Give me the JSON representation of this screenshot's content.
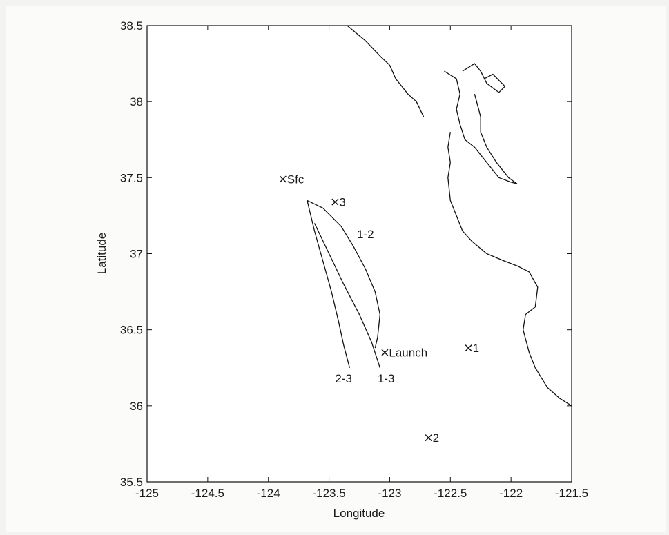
{
  "chart_data": {
    "type": "line",
    "title": "",
    "xlabel": "Longitude",
    "ylabel": "Latitude",
    "xlim": [
      -125,
      -121.5
    ],
    "ylim": [
      35.5,
      38.5
    ],
    "x_ticks": [
      -125,
      -124.5,
      -124,
      -123.5,
      -123,
      -122.5,
      -122,
      -121.5
    ],
    "y_ticks": [
      35.5,
      36,
      36.5,
      37,
      37.5,
      38,
      38.5
    ],
    "grid": false,
    "legend": "none",
    "colors": {
      "line": "#111111",
      "text": "#1a1a1a",
      "background": "#fbfbf9"
    },
    "markers": [
      {
        "label": "Sfc",
        "lon": -123.88,
        "lat": 37.49
      },
      {
        "label": "3",
        "lon": -123.45,
        "lat": 37.34
      },
      {
        "label": "Launch",
        "lon": -123.04,
        "lat": 36.35
      },
      {
        "label": "1",
        "lon": -122.35,
        "lat": 36.38
      },
      {
        "label": "2",
        "lon": -122.68,
        "lat": 35.79
      }
    ],
    "track_labels": [
      {
        "label": "1-2",
        "lon": -123.27,
        "lat": 37.13
      },
      {
        "label": "2-3",
        "lon": -123.45,
        "lat": 36.18
      },
      {
        "label": "1-3",
        "lon": -123.1,
        "lat": 36.18
      }
    ],
    "series": [
      {
        "values": [
          [
            -123.68,
            37.35
          ],
          [
            -123.55,
            37.3
          ],
          [
            -123.4,
            37.18
          ],
          [
            -123.3,
            37.05
          ],
          [
            -123.2,
            36.9
          ],
          [
            -123.12,
            36.75
          ],
          [
            -123.08,
            36.6
          ],
          [
            -123.1,
            36.45
          ],
          [
            -123.12,
            36.38
          ]
        ]
      },
      {
        "values": [
          [
            -123.68,
            37.35
          ],
          [
            -123.62,
            37.15
          ],
          [
            -123.55,
            36.95
          ],
          [
            -123.48,
            36.75
          ],
          [
            -123.42,
            36.55
          ],
          [
            -123.38,
            36.4
          ],
          [
            -123.33,
            36.25
          ]
        ]
      },
      {
        "values": [
          [
            -123.62,
            37.2
          ],
          [
            -123.5,
            37.0
          ],
          [
            -123.38,
            36.8
          ],
          [
            -123.25,
            36.6
          ],
          [
            -123.15,
            36.42
          ],
          [
            -123.08,
            36.25
          ]
        ]
      },
      {
        "values": [
          [
            -123.35,
            38.5
          ],
          [
            -123.2,
            38.4
          ],
          [
            -123.08,
            38.3
          ],
          [
            -123.0,
            38.24
          ],
          [
            -122.95,
            38.15
          ],
          [
            -122.9,
            38.1
          ],
          [
            -122.85,
            38.05
          ],
          [
            -122.78,
            38.0
          ],
          [
            -122.72,
            37.9
          ]
        ]
      },
      {
        "values": [
          [
            -122.55,
            38.2
          ],
          [
            -122.45,
            38.15
          ],
          [
            -122.42,
            38.05
          ],
          [
            -122.45,
            37.95
          ],
          [
            -122.42,
            37.85
          ],
          [
            -122.38,
            37.75
          ],
          [
            -122.3,
            37.7
          ],
          [
            -122.2,
            37.6
          ],
          [
            -122.1,
            37.5
          ],
          [
            -122.0,
            37.47
          ],
          [
            -121.95,
            37.46
          ]
        ]
      },
      {
        "values": [
          [
            -122.5,
            37.8
          ],
          [
            -122.52,
            37.7
          ],
          [
            -122.5,
            37.6
          ],
          [
            -122.52,
            37.5
          ],
          [
            -122.5,
            37.35
          ],
          [
            -122.45,
            37.25
          ],
          [
            -122.4,
            37.15
          ],
          [
            -122.32,
            37.08
          ],
          [
            -122.2,
            37.0
          ],
          [
            -122.05,
            36.95
          ],
          [
            -121.95,
            36.92
          ],
          [
            -121.85,
            36.88
          ],
          [
            -121.78,
            36.78
          ],
          [
            -121.8,
            36.65
          ],
          [
            -121.88,
            36.6
          ],
          [
            -121.9,
            36.5
          ],
          [
            -121.85,
            36.35
          ],
          [
            -121.8,
            36.25
          ],
          [
            -121.7,
            36.12
          ],
          [
            -121.6,
            36.05
          ],
          [
            -121.5,
            36.0
          ]
        ]
      },
      {
        "values": [
          [
            -122.4,
            38.2
          ],
          [
            -122.3,
            38.25
          ],
          [
            -122.25,
            38.2
          ],
          [
            -122.2,
            38.12
          ],
          [
            -122.1,
            38.06
          ],
          [
            -122.05,
            38.1
          ],
          [
            -122.15,
            38.18
          ],
          [
            -122.22,
            38.15
          ]
        ]
      },
      {
        "values": [
          [
            -122.3,
            38.05
          ],
          [
            -122.25,
            37.9
          ],
          [
            -122.25,
            37.8
          ],
          [
            -122.2,
            37.7
          ],
          [
            -122.12,
            37.6
          ],
          [
            -122.02,
            37.5
          ],
          [
            -121.95,
            37.46
          ]
        ]
      }
    ]
  }
}
